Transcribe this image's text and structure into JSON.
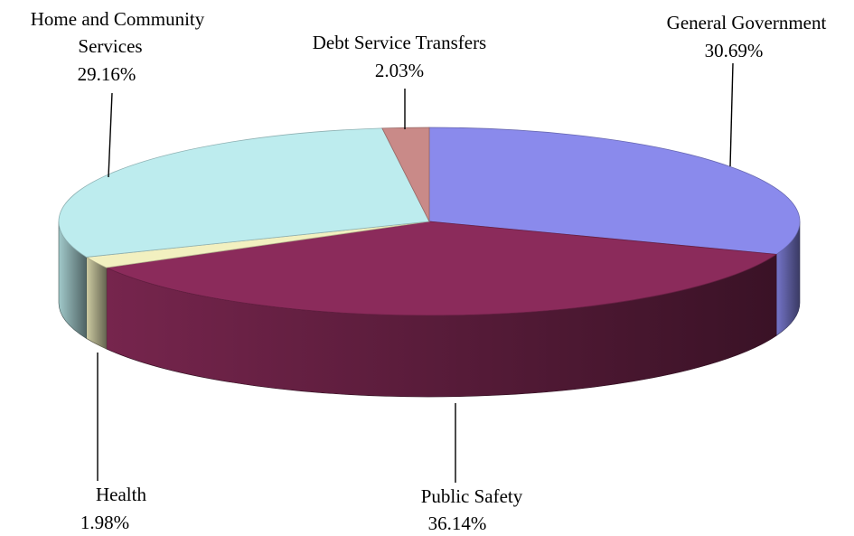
{
  "chart_data": {
    "type": "pie",
    "style": "3d",
    "slices": [
      {
        "label_lines": [
          "General Government"
        ],
        "value_text": "30.69%",
        "value": 30.69,
        "color": "#8a8aec"
      },
      {
        "label_lines": [
          "Public Safety"
        ],
        "value_text": "36.14%",
        "value": 36.14,
        "color": "#8b2b5b"
      },
      {
        "label_lines": [
          "Health"
        ],
        "value_text": "1.98%",
        "value": 1.98,
        "color": "#f2f0c0"
      },
      {
        "label_lines": [
          "Home and Community",
          "Services"
        ],
        "value_text": "29.16%",
        "value": 29.16,
        "color": "#bdecee"
      },
      {
        "label_lines": [
          "Debt Service Transfers"
        ],
        "value_text": "2.03%",
        "value": 2.03,
        "color": "#c98a88"
      }
    ]
  }
}
